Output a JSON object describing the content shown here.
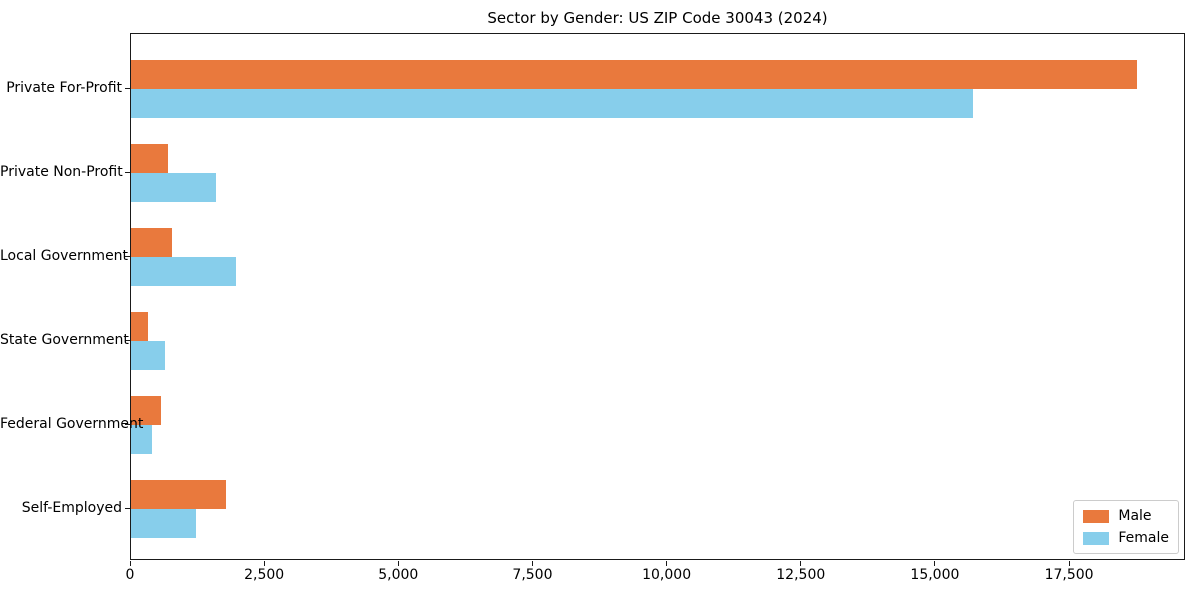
{
  "chart_data": {
    "type": "bar",
    "orientation": "horizontal",
    "title": "Sector by Gender: US ZIP Code 30043 (2024)",
    "categories": [
      "Private For-Profit",
      "Private Non-Profit",
      "Local Government",
      "State Government",
      "Federal Government",
      "Self-Employed"
    ],
    "series": [
      {
        "name": "Male",
        "color": "#e9793d",
        "values": [
          18750,
          690,
          760,
          310,
          560,
          1770
        ]
      },
      {
        "name": "Female",
        "color": "#87ceeb",
        "values": [
          15690,
          1580,
          1960,
          640,
          390,
          1210
        ]
      }
    ],
    "xlabel": "",
    "ylabel": "",
    "xlim": [
      0,
      19660
    ],
    "xticks": [
      0,
      2500,
      5000,
      7500,
      10000,
      12500,
      15000,
      17500
    ],
    "xtick_labels": [
      "0",
      "2,500",
      "5,000",
      "7,500",
      "10,000",
      "12,500",
      "15,000",
      "17,500"
    ],
    "grid": false,
    "legend_position": "lower right",
    "background": "#ffffff",
    "spine_color": "#1a1a1a"
  }
}
